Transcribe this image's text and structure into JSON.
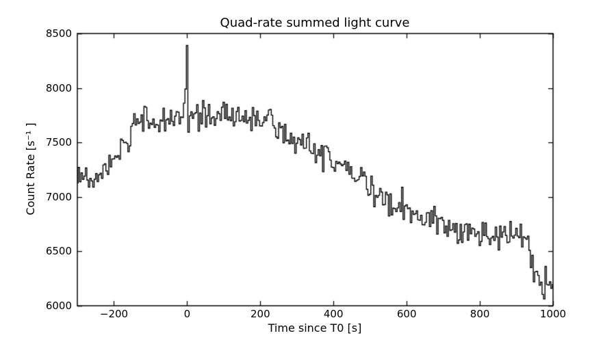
{
  "chart_data": {
    "type": "line",
    "title": "Quad-rate summed light curve",
    "xlabel": "Time since T0 [s]",
    "ylabel": "Count Rate [s⁻¹ ]",
    "xlim": [
      -300,
      1000
    ],
    "ylim": [
      6000,
      8500
    ],
    "xticks": [
      -200,
      0,
      200,
      400,
      600,
      800,
      1000
    ],
    "xtick_labels": [
      "−200",
      "0",
      "200",
      "400",
      "600",
      "800",
      "1000"
    ],
    "yticks": [
      6000,
      6500,
      7000,
      7500,
      8000,
      8500
    ],
    "ytick_labels": [
      "6000",
      "6500",
      "7000",
      "7500",
      "8000",
      "8500"
    ],
    "grid": false,
    "legend": null,
    "line_color": "#000000",
    "background_color": "#ffffff",
    "line_width": 1.4,
    "draw_style": "steps-mid",
    "bin_seconds": 4,
    "noise_sigma": 70,
    "noise_seed": 9,
    "spike_bins": [
      [
        -4,
        7990
      ],
      [
        0,
        8390
      ]
    ],
    "trend": [
      [
        -300,
        7170
      ],
      [
        -270,
        7150
      ],
      [
        -240,
        7180
      ],
      [
        -210,
        7230
      ],
      [
        -180,
        7450
      ],
      [
        -160,
        7570
      ],
      [
        -140,
        7650
      ],
      [
        -110,
        7680
      ],
      [
        -60,
        7700
      ],
      [
        0,
        7720
      ],
      [
        60,
        7740
      ],
      [
        110,
        7760
      ],
      [
        160,
        7720
      ],
      [
        210,
        7690
      ],
      [
        260,
        7610
      ],
      [
        300,
        7500
      ],
      [
        350,
        7430
      ],
      [
        400,
        7340
      ],
      [
        450,
        7230
      ],
      [
        500,
        7080
      ],
      [
        540,
        6990
      ],
      [
        580,
        6900
      ],
      [
        620,
        6870
      ],
      [
        660,
        6840
      ],
      [
        700,
        6760
      ],
      [
        740,
        6700
      ],
      [
        780,
        6670
      ],
      [
        820,
        6660
      ],
      [
        860,
        6640
      ],
      [
        890,
        6620
      ],
      [
        912,
        6660
      ],
      [
        928,
        6600
      ],
      [
        940,
        6420
      ],
      [
        952,
        6270
      ],
      [
        965,
        6190
      ],
      [
        980,
        6180
      ],
      [
        1000,
        6220
      ]
    ]
  }
}
